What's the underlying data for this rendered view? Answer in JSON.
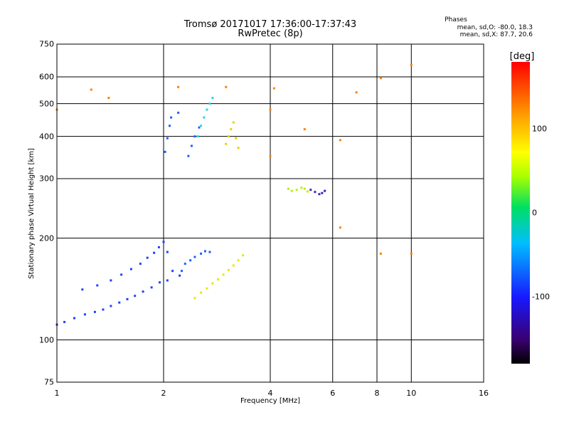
{
  "chart_data": {
    "type": "scatter",
    "title": "Tromsø 20171017 17:36:00-17:37:43",
    "subtitle": "RwPretec (8p)",
    "xlabel": "Frequency [MHz]",
    "ylabel": "Stationary phase Virtual Height [km]",
    "x_scale": "log",
    "y_scale": "log",
    "xlim": [
      1,
      16
    ],
    "ylim": [
      75,
      750
    ],
    "x_ticks": [
      1,
      2,
      4,
      6,
      8,
      10,
      16
    ],
    "y_ticks": [
      75,
      100,
      200,
      300,
      400,
      500,
      600,
      750
    ],
    "x_grid": [
      2,
      4,
      6,
      8,
      10
    ],
    "y_grid": [
      100,
      200,
      300,
      400,
      500,
      600
    ],
    "grid": true,
    "phase_stats": {
      "heading": "Phases",
      "o_line": "mean, sd,O: -80.0, 18.3",
      "x_line": "mean, sd,X:  87.7, 20.6"
    },
    "colorbar": {
      "label": "[deg]",
      "range": [
        -180,
        180
      ],
      "ticks": [
        100,
        0,
        -100
      ],
      "tick_labels": [
        "100",
        "0",
        "-100"
      ]
    },
    "clusters": [
      {
        "name": "low_lower_trace",
        "color": "#1e40ff",
        "points": [
          [
            1.0,
            111
          ],
          [
            1.05,
            113
          ],
          [
            1.12,
            116
          ],
          [
            1.2,
            119
          ],
          [
            1.28,
            121
          ],
          [
            1.35,
            123
          ],
          [
            1.42,
            126
          ],
          [
            1.5,
            129
          ],
          [
            1.58,
            132
          ],
          [
            1.66,
            135
          ],
          [
            1.75,
            139
          ],
          [
            1.85,
            143
          ],
          [
            1.95,
            148
          ],
          [
            2.05,
            150
          ]
        ]
      },
      {
        "name": "low_upper_trace",
        "color": "#1e40ff",
        "points": [
          [
            1.18,
            141
          ],
          [
            1.3,
            145
          ],
          [
            1.42,
            150
          ],
          [
            1.52,
            156
          ],
          [
            1.62,
            162
          ],
          [
            1.72,
            168
          ],
          [
            1.8,
            175
          ],
          [
            1.88,
            181
          ],
          [
            1.94,
            188
          ],
          [
            2.0,
            195
          ],
          [
            2.05,
            182
          ],
          [
            2.12,
            160
          ],
          [
            2.22,
            155
          ]
        ]
      },
      {
        "name": "f_trace_blue",
        "color": "#1a60ff",
        "points": [
          [
            2.25,
            160
          ],
          [
            2.3,
            168
          ],
          [
            2.38,
            172
          ],
          [
            2.45,
            176
          ],
          [
            2.55,
            180
          ],
          [
            2.62,
            183
          ],
          [
            2.7,
            182
          ]
        ]
      },
      {
        "name": "f_trace_yellow",
        "color": "#e8e800",
        "points": [
          [
            2.45,
            133
          ],
          [
            2.55,
            138
          ],
          [
            2.65,
            142
          ],
          [
            2.75,
            147
          ],
          [
            2.85,
            151
          ],
          [
            2.95,
            156
          ],
          [
            3.05,
            161
          ],
          [
            3.15,
            166
          ],
          [
            3.25,
            172
          ],
          [
            3.35,
            178
          ]
        ]
      },
      {
        "name": "mid_cluster_blue",
        "color": "#1e60ff",
        "points": [
          [
            2.02,
            360
          ],
          [
            2.05,
            395
          ],
          [
            2.08,
            430
          ],
          [
            2.1,
            455
          ],
          [
            2.2,
            470
          ],
          [
            2.35,
            350
          ],
          [
            2.4,
            375
          ],
          [
            2.45,
            400
          ],
          [
            2.52,
            425
          ]
        ]
      },
      {
        "name": "mid_cluster_cyan",
        "color": "#20d8e8",
        "points": [
          [
            2.5,
            400
          ],
          [
            2.55,
            430
          ],
          [
            2.6,
            455
          ],
          [
            2.65,
            480
          ],
          [
            2.7,
            500
          ],
          [
            2.75,
            520
          ]
        ]
      },
      {
        "name": "mid_cluster_yellow",
        "color": "#e8d000",
        "points": [
          [
            3.0,
            380
          ],
          [
            3.05,
            400
          ],
          [
            3.1,
            420
          ],
          [
            3.15,
            440
          ],
          [
            3.2,
            395
          ],
          [
            3.25,
            370
          ]
        ]
      },
      {
        "name": "upper_right_trace",
        "color": "#b8f000",
        "points": [
          [
            4.5,
            280
          ],
          [
            4.6,
            276
          ],
          [
            4.75,
            278
          ],
          [
            4.9,
            282
          ],
          [
            5.0,
            280
          ],
          [
            5.1,
            275
          ]
        ]
      },
      {
        "name": "upper_right_trace_purple",
        "color": "#4020c0",
        "points": [
          [
            5.2,
            278
          ],
          [
            5.35,
            274
          ],
          [
            5.5,
            270
          ],
          [
            5.6,
            272
          ],
          [
            5.7,
            276
          ]
        ]
      },
      {
        "name": "scatter_noise",
        "color": "#ff8000",
        "points": [
          [
            1.25,
            550
          ],
          [
            2.2,
            560
          ],
          [
            3.0,
            560
          ],
          [
            4.1,
            555
          ],
          [
            7.0,
            540
          ],
          [
            8.2,
            595
          ],
          [
            10.0,
            650
          ],
          [
            1.0,
            480
          ],
          [
            1.4,
            520
          ],
          [
            6.3,
            390
          ],
          [
            6.3,
            215
          ],
          [
            10.0,
            180
          ],
          [
            8.2,
            180
          ],
          [
            5.0,
            420
          ],
          [
            4.0,
            480
          ],
          [
            4.0,
            350
          ]
        ]
      }
    ]
  }
}
